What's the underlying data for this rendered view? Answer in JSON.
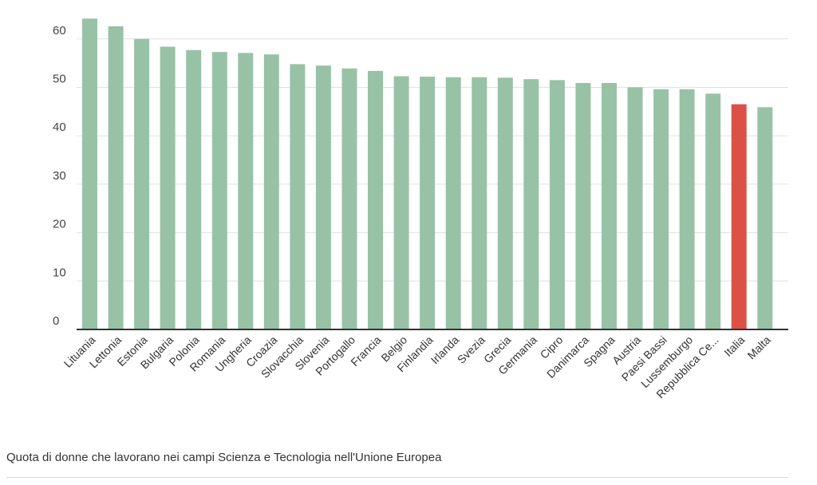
{
  "caption": "Quota di donne che lavorano nei campi Scienza e Tecnologia nell'Unione Europea",
  "colors": {
    "bar": "#98c2a6",
    "highlight": "#dc5145",
    "grid": "#e0e0e0",
    "baseline": "#333333"
  },
  "chart_data": {
    "type": "bar",
    "title": "",
    "xlabel": "",
    "ylabel": "",
    "ylim": [
      0,
      67
    ],
    "yticks": [
      0,
      10,
      20,
      30,
      40,
      50,
      60
    ],
    "grid": true,
    "legend": "none",
    "highlight_category": "Italia",
    "categories": [
      "Lituania",
      "Lettonia",
      "Estonia",
      "Bulgaria",
      "Polonia",
      "Romania",
      "Ungheria",
      "Croazia",
      "Slovacchia",
      "Slovenia",
      "Portogallo",
      "Francia",
      "Belgio",
      "Finlandia",
      "Irlanda",
      "Svezia",
      "Grecia",
      "Germania",
      "Cipro",
      "Danimarca",
      "Spagna",
      "Austria",
      "Paesi Bassi",
      "Lussemburgo",
      "Repubblica Ce...",
      "Italia",
      "Malta"
    ],
    "values": [
      64.2,
      62.6,
      60.0,
      58.4,
      57.7,
      57.3,
      57.1,
      56.8,
      54.8,
      54.5,
      53.9,
      53.4,
      52.3,
      52.2,
      52.1,
      52.1,
      52.0,
      51.7,
      51.5,
      50.9,
      50.9,
      50.0,
      49.6,
      49.6,
      48.7,
      46.5,
      45.9
    ]
  }
}
